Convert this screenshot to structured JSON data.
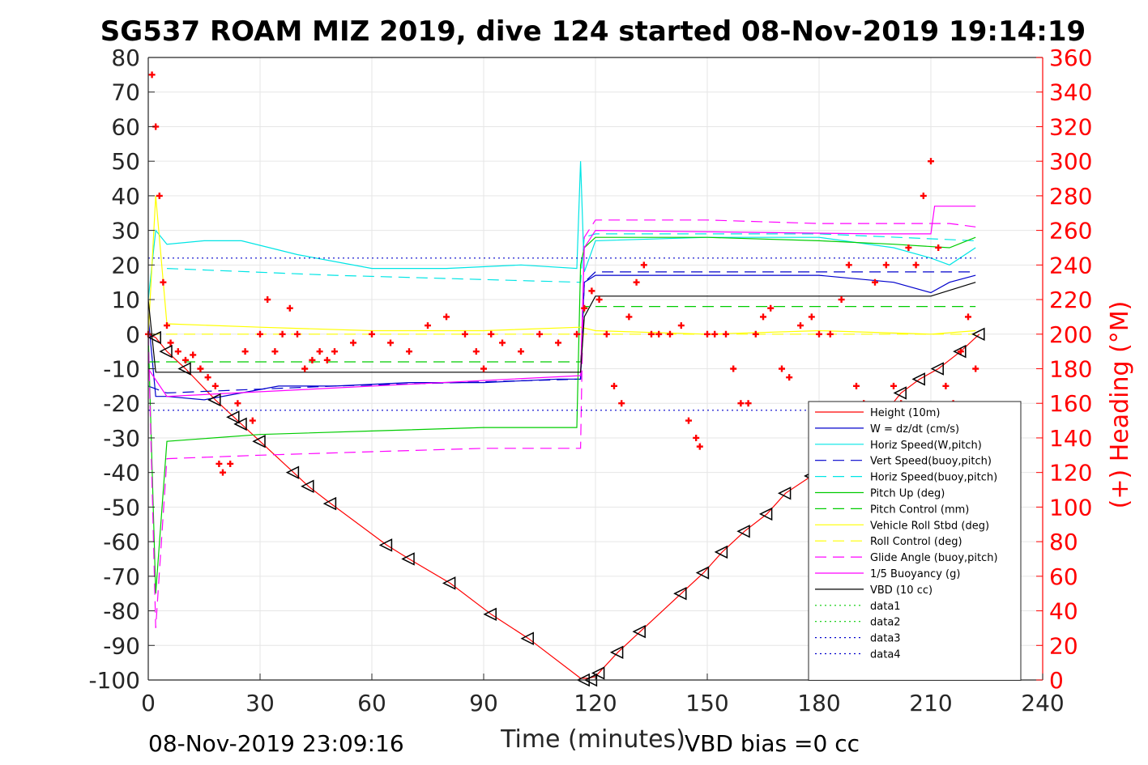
{
  "chart_data": {
    "type": "line",
    "title": "SG537 ROAM MIZ 2019, dive 124 started 08-Nov-2019 19:14:19",
    "xlabel": "Time (minutes)",
    "ylabel": "",
    "y2label": "(+) Heading (°M)",
    "xlim": [
      0,
      240
    ],
    "ylim": [
      -100,
      80
    ],
    "y2lim": [
      0,
      360
    ],
    "xticks": [
      "0",
      "30",
      "60",
      "90",
      "120",
      "150",
      "180",
      "210",
      "240"
    ],
    "yticks": [
      "80",
      "70",
      "60",
      "50",
      "40",
      "30",
      "20",
      "10",
      "0",
      "-10",
      "-20",
      "-30",
      "-40",
      "-50",
      "-60",
      "-70",
      "-80",
      "-90",
      "-100"
    ],
    "y2ticks": [
      "360",
      "340",
      "320",
      "300",
      "280",
      "260",
      "240",
      "220",
      "200",
      "180",
      "160",
      "140",
      "120",
      "100",
      "80",
      "60",
      "40",
      "20",
      "0"
    ],
    "grid": true,
    "legend_position": "bottom-right",
    "footer_left": "08-Nov-2019 23:09:16",
    "footer_right": "VBD bias =0 cc",
    "series": [
      {
        "name": "Height (10m)",
        "color": "#ff0000",
        "style": "solid",
        "x": [
          0,
          2,
          5,
          10,
          18,
          23,
          25,
          30,
          39,
          43,
          49,
          64,
          70,
          81,
          92,
          102,
          116,
          118,
          120,
          126,
          132,
          143,
          149,
          154,
          160,
          166,
          171,
          178,
          193,
          202,
          207,
          212,
          218,
          223
        ],
        "y": [
          0,
          -1,
          -5,
          -10,
          -19,
          -24,
          -26,
          -31,
          -40,
          -44,
          -49,
          -61,
          -65,
          -72,
          -81,
          -88,
          -99.5,
          -99.5,
          -99,
          -92,
          -86,
          -75,
          -69,
          -63,
          -57,
          -52,
          -46,
          -41,
          -29,
          -17,
          -13,
          -10,
          -5,
          0
        ]
      },
      {
        "name": "W = dz/dt (cm/s)",
        "color": "#0000cc",
        "style": "solid",
        "x": [
          0,
          2,
          5,
          15,
          25,
          35,
          50,
          70,
          90,
          110,
          116,
          117,
          120,
          140,
          160,
          180,
          200,
          210,
          215,
          222
        ],
        "y": [
          5,
          -18,
          -18,
          -19,
          -17,
          -15,
          -15,
          -14,
          -14,
          -13,
          -13,
          15,
          17,
          17,
          17,
          17,
          15,
          12,
          15,
          17
        ]
      },
      {
        "name": "Horiz Speed(W,pitch)",
        "color": "#00e5e5",
        "style": "solid",
        "x": [
          0,
          2,
          5,
          15,
          25,
          40,
          60,
          80,
          100,
          115,
          116,
          117,
          120,
          150,
          180,
          200,
          210,
          215,
          222
        ],
        "y": [
          10,
          30,
          26,
          27,
          27,
          23,
          19,
          19,
          20,
          19,
          50,
          18,
          27,
          28,
          28,
          25,
          22,
          20,
          25
        ]
      },
      {
        "name": "Vert Speed(buoy,pitch)",
        "color": "#0000cc",
        "style": "dash",
        "x": [
          0,
          5,
          50,
          116,
          117,
          120,
          180,
          222
        ],
        "y": [
          -15,
          -17,
          -15,
          -13,
          15,
          18,
          18,
          18
        ]
      },
      {
        "name": "Horiz Speed(buoy,pitch)",
        "color": "#00e5e5",
        "style": "dash",
        "x": [
          5,
          50,
          116,
          117,
          120,
          180,
          222
        ],
        "y": [
          19,
          17,
          15,
          28,
          29,
          29,
          27
        ]
      },
      {
        "name": "Pitch Up (deg)",
        "color": "#00cc00",
        "style": "solid",
        "x": [
          0,
          2,
          5,
          30,
          60,
          90,
          115,
          116,
          117,
          120,
          150,
          180,
          200,
          215,
          222
        ],
        "y": [
          0,
          -75,
          -31,
          -29,
          -28,
          -27,
          -27,
          20,
          25,
          28,
          28,
          27,
          26,
          25,
          28
        ]
      },
      {
        "name": "Pitch Control (mm)",
        "color": "#00cc00",
        "style": "dash",
        "x": [
          0,
          116,
          117,
          222
        ],
        "y": [
          -8,
          -8,
          8,
          8
        ]
      },
      {
        "name": "Vehicle Roll Stbd (deg)",
        "color": "#ffff00",
        "style": "solid",
        "x": [
          0,
          2,
          5,
          30,
          60,
          90,
          116,
          120,
          150,
          180,
          210,
          222
        ],
        "y": [
          0,
          40,
          3,
          2,
          1,
          1,
          2,
          1,
          0,
          1,
          0,
          1
        ]
      },
      {
        "name": "Roll Control (deg)",
        "color": "#ffff00",
        "style": "dash",
        "x": [
          0,
          222
        ],
        "y": [
          0,
          0
        ]
      },
      {
        "name": "Glide Angle (buoy,pitch)",
        "color": "#ff00ff",
        "style": "dash",
        "x": [
          0,
          2,
          5,
          30,
          60,
          90,
          116,
          117,
          120,
          150,
          180,
          200,
          215,
          222
        ],
        "y": [
          0,
          -85,
          -36,
          -35,
          -34,
          -33,
          -33,
          28,
          33,
          33,
          32,
          32,
          32,
          31
        ]
      },
      {
        "name": "1/5 Buoyancy (g)",
        "color": "#ff00ff",
        "style": "solid",
        "x": [
          0,
          5,
          116,
          117,
          120,
          195,
          210,
          211,
          222
        ],
        "y": [
          -10,
          -18,
          -12,
          25,
          30,
          29,
          29,
          37,
          37
        ]
      },
      {
        "name": "VBD (10 cc)",
        "color": "#000000",
        "style": "solid",
        "x": [
          0,
          2,
          116,
          117,
          120,
          210,
          222
        ],
        "y": [
          10,
          -11,
          -11,
          5,
          11,
          11,
          15
        ]
      },
      {
        "name": "data1",
        "color": "#00cc00",
        "style": "dot",
        "x": [],
        "y": []
      },
      {
        "name": "data2",
        "color": "#00cc00",
        "style": "dot",
        "x": [],
        "y": []
      },
      {
        "name": "data3",
        "color": "#0000cc",
        "style": "dot",
        "x": [
          0,
          222
        ],
        "y": [
          22,
          22
        ]
      },
      {
        "name": "data4",
        "color": "#0000cc",
        "style": "dot",
        "x": [
          0,
          222
        ],
        "y": [
          -22,
          -22
        ]
      }
    ],
    "heading": {
      "axis": "right",
      "color": "#ff0000",
      "marker": "+",
      "x": [
        0,
        1,
        2,
        3,
        4,
        5,
        6,
        8,
        10,
        12,
        14,
        16,
        18,
        19,
        20,
        22,
        24,
        26,
        28,
        30,
        32,
        34,
        36,
        38,
        40,
        42,
        44,
        46,
        48,
        50,
        55,
        60,
        65,
        70,
        75,
        80,
        85,
        88,
        90,
        92,
        95,
        100,
        105,
        110,
        115,
        117,
        119,
        121,
        123,
        125,
        127,
        129,
        131,
        133,
        135,
        137,
        140,
        143,
        145,
        147,
        148,
        150,
        152,
        155,
        157,
        159,
        161,
        163,
        165,
        167,
        170,
        172,
        175,
        178,
        180,
        183,
        186,
        188,
        190,
        192,
        195,
        198,
        200,
        202,
        204,
        206,
        208,
        210,
        212,
        214,
        216,
        218,
        220,
        222
      ],
      "y": [
        200,
        350,
        320,
        280,
        230,
        205,
        195,
        190,
        185,
        188,
        180,
        175,
        170,
        125,
        120,
        125,
        160,
        190,
        150,
        200,
        220,
        190,
        200,
        215,
        200,
        180,
        185,
        190,
        185,
        190,
        195,
        200,
        195,
        190,
        205,
        210,
        200,
        190,
        180,
        200,
        195,
        190,
        200,
        195,
        200,
        215,
        225,
        220,
        200,
        170,
        160,
        210,
        230,
        240,
        200,
        200,
        200,
        205,
        150,
        140,
        135,
        200,
        200,
        200,
        180,
        160,
        160,
        200,
        210,
        215,
        180,
        175,
        205,
        210,
        200,
        200,
        220,
        240,
        170,
        160,
        230,
        240,
        170,
        160,
        250,
        240,
        280,
        300,
        250,
        170,
        160,
        190,
        210,
        180
      ]
    },
    "position_markers": {
      "marker": "triangle-left",
      "color": "#000000",
      "x": [
        2,
        5,
        10,
        18,
        23,
        25,
        30,
        39,
        43,
        49,
        64,
        70,
        81,
        92,
        102,
        117,
        119,
        121,
        126,
        132,
        143,
        149,
        154,
        160,
        166,
        171,
        178,
        202,
        207,
        212,
        218,
        223
      ],
      "y": [
        -1,
        -5,
        -10,
        -19,
        -24,
        -26,
        -31,
        -40,
        -44,
        -49,
        -61,
        -65,
        -72,
        -81,
        -88,
        -100,
        -100,
        -98,
        -92,
        -86,
        -75,
        -69,
        -63,
        -57,
        -52,
        -46,
        -41,
        -17,
        -13,
        -10,
        -5,
        0
      ]
    }
  }
}
